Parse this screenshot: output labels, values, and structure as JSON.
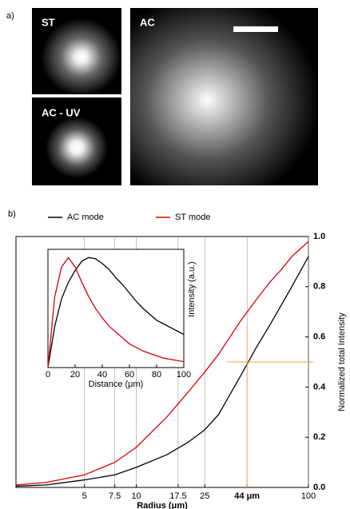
{
  "figure": {
    "label_a": "a)",
    "label_b": "b)",
    "images": [
      {
        "label": "ST"
      },
      {
        "label": "AC - UV"
      },
      {
        "label": "AC"
      }
    ]
  },
  "chart_data": [
    {
      "type": "line",
      "xlabel": "Radius (μm)",
      "ylabel": "Normalized total Intensity",
      "xscale": "log",
      "grid": true,
      "xlim": [
        2,
        100
      ],
      "ylim": [
        0,
        1
      ],
      "xticks": [
        5,
        7.5,
        10,
        17.5,
        25,
        {
          "value": 44,
          "label": "44 μm"
        },
        100
      ],
      "yticks": [
        {
          "value": 0,
          "label": "0.0"
        },
        0.2,
        0.4,
        0.6,
        0.8,
        {
          "value": 1,
          "label": "1.0"
        }
      ],
      "x": [
        2,
        3,
        5,
        7.5,
        10,
        15,
        20,
        25,
        30,
        40,
        50,
        60,
        70,
        80,
        100
      ],
      "series": [
        {
          "name": "AC mode",
          "color": "#000000",
          "values": [
            0.005,
            0.01,
            0.03,
            0.05,
            0.08,
            0.13,
            0.18,
            0.23,
            0.29,
            0.44,
            0.56,
            0.65,
            0.73,
            0.8,
            0.92
          ]
        },
        {
          "name": "ST mode",
          "color": "#e00000",
          "values": [
            0.01,
            0.02,
            0.05,
            0.1,
            0.16,
            0.28,
            0.38,
            0.46,
            0.53,
            0.66,
            0.75,
            0.82,
            0.87,
            0.92,
            0.98
          ]
        }
      ],
      "marker": {
        "x": 44,
        "y": 0.5,
        "color": "#f0a040"
      }
    },
    {
      "type": "line",
      "xlabel": "Distance (μm)",
      "ylabel": "Intensity (a.u.)",
      "xlim": [
        0,
        100
      ],
      "ylim": [
        0,
        1
      ],
      "xticks": [
        0,
        20,
        40,
        60,
        80,
        100
      ],
      "x": [
        0,
        5,
        10,
        15,
        20,
        25,
        30,
        35,
        40,
        45,
        50,
        55,
        60,
        65,
        70,
        75,
        80,
        85,
        90,
        95,
        100
      ],
      "series": [
        {
          "color": "#000000",
          "values": [
            0,
            0.35,
            0.58,
            0.72,
            0.82,
            0.9,
            0.93,
            0.92,
            0.88,
            0.83,
            0.76,
            0.7,
            0.63,
            0.56,
            0.5,
            0.45,
            0.4,
            0.37,
            0.34,
            0.31,
            0.28
          ]
        },
        {
          "color": "#e00000",
          "values": [
            0,
            0.6,
            0.85,
            0.93,
            0.85,
            0.72,
            0.6,
            0.5,
            0.42,
            0.35,
            0.3,
            0.25,
            0.2,
            0.17,
            0.14,
            0.12,
            0.1,
            0.08,
            0.07,
            0.06,
            0.05
          ]
        }
      ]
    }
  ]
}
